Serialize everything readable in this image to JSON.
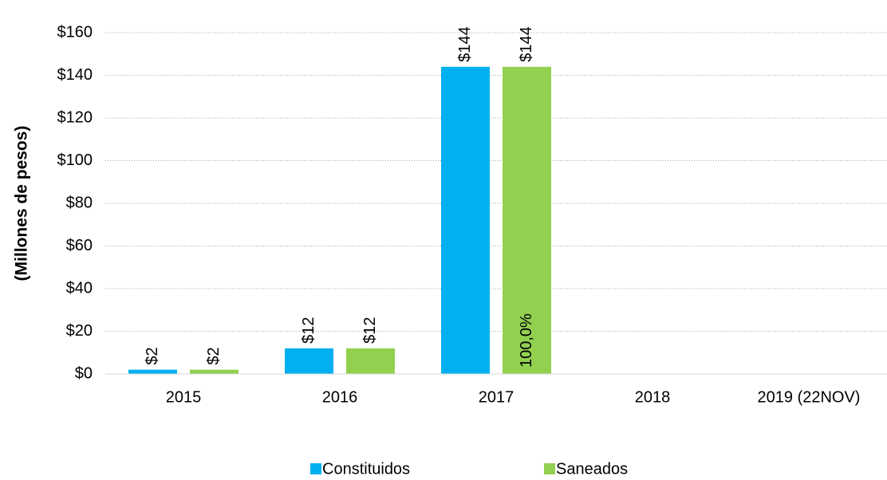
{
  "chart_data": {
    "type": "bar",
    "y_axis_label": "(Millones de pesos)",
    "categories": [
      "2015",
      "2016",
      "2017",
      "2018",
      "2019 (22NOV)"
    ],
    "series": [
      {
        "name": "Constituidos",
        "color": "#00b0f0",
        "values": [
          2,
          12,
          144,
          null,
          null
        ],
        "value_labels": [
          "$2",
          "$12",
          "$144",
          null,
          null
        ]
      },
      {
        "name": "Saneados",
        "color": "#92d050",
        "values": [
          2,
          12,
          144,
          null,
          null
        ],
        "value_labels": [
          "$2",
          "$12",
          "$144",
          null,
          null
        ]
      }
    ],
    "annotation": "100,0%",
    "ylim": [
      0,
      160
    ],
    "yticks": [
      {
        "value": 0,
        "label": "$0"
      },
      {
        "value": 20,
        "label": "$20"
      },
      {
        "value": 40,
        "label": "$40"
      },
      {
        "value": 60,
        "label": "$60"
      },
      {
        "value": 80,
        "label": "$80"
      },
      {
        "value": 100,
        "label": "$100"
      },
      {
        "value": 120,
        "label": "$120"
      },
      {
        "value": 140,
        "label": "$140"
      },
      {
        "value": 160,
        "label": "$160"
      }
    ],
    "grid": true,
    "legend": "bottom"
  }
}
